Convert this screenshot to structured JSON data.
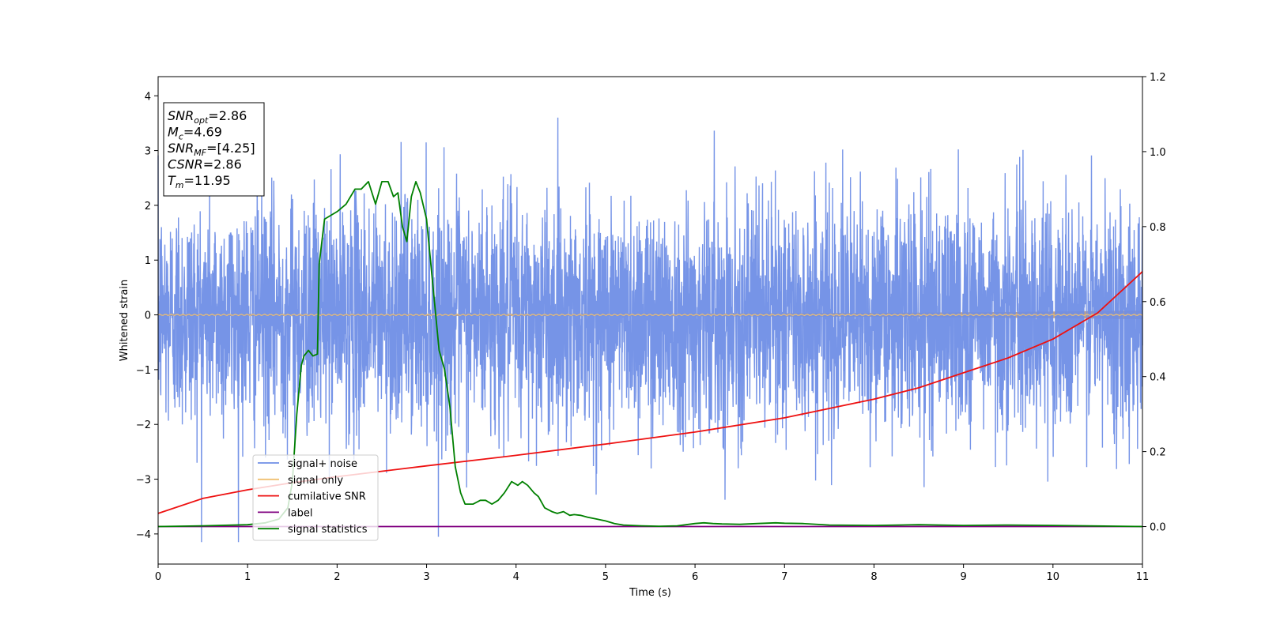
{
  "chart_data": {
    "type": "line",
    "xlabel": "Time (s)",
    "ylabel": "Whitened strain",
    "xlim": [
      0,
      11
    ],
    "ylim": [
      -4.55,
      4.35
    ],
    "y2lim": [
      -0.1,
      1.2
    ],
    "xticks": [
      "0",
      "1",
      "2",
      "3",
      "4",
      "5",
      "6",
      "7",
      "8",
      "9",
      "10",
      "11"
    ],
    "yticks": [
      "−4",
      "−3",
      "−2",
      "−1",
      "0",
      "1",
      "2",
      "3",
      "4"
    ],
    "y2ticks": [
      "0.0",
      "0.2",
      "0.4",
      "0.6",
      "0.8",
      "1.0",
      "1.2"
    ],
    "grid": false,
    "legend_position": "lower-left",
    "colors": {
      "signal_noise": "#6f8ee6",
      "signal_only": "#f0c070",
      "cumulative_snr": "#ee1111",
      "label": "#800080",
      "signal_statistics": "#008000",
      "signal_only_band": "#c49a70"
    },
    "info_box": [
      {
        "base": "SNR",
        "sub": "opt",
        "rest": "=2.86"
      },
      {
        "base": "M",
        "sub": "c",
        "rest": "=4.69"
      },
      {
        "base": "SNR",
        "sub": "MF",
        "rest": "=[4.25]"
      },
      {
        "base": "CSNR",
        "sub": "",
        "rest": "=2.86"
      },
      {
        "base": "T",
        "sub": "m",
        "rest": "=11.95"
      }
    ],
    "series": [
      {
        "name": "signal+ noise",
        "axis": "left",
        "color": "#6f8ee6",
        "kind": "noise",
        "sigma": 1.0,
        "x_range": [
          0,
          11
        ]
      },
      {
        "name": "signal only",
        "axis": "left",
        "color": "#f0c070",
        "x_range": [
          0,
          11
        ],
        "amplitude_start": 0.02,
        "amplitude_end": 0.08
      },
      {
        "name": "cumilative SNR",
        "axis": "right",
        "x": [
          0,
          0.5,
          1,
          1.5,
          2,
          3,
          4,
          5,
          6,
          7,
          8,
          8.5,
          9,
          9.5,
          10,
          10.5,
          11
        ],
        "y": [
          0.035,
          0.075,
          0.098,
          0.117,
          0.133,
          0.162,
          0.19,
          0.22,
          0.252,
          0.29,
          0.34,
          0.37,
          0.41,
          0.45,
          0.5,
          0.57,
          0.68
        ]
      },
      {
        "name": "label",
        "axis": "right",
        "x": [
          0,
          11
        ],
        "y": [
          0.0,
          0.0
        ]
      },
      {
        "name": "signal statistics",
        "axis": "right",
        "x": [
          0,
          0.5,
          1.0,
          1.2,
          1.35,
          1.45,
          1.5,
          1.55,
          1.6,
          1.63,
          1.68,
          1.73,
          1.78,
          1.8,
          1.86,
          1.93,
          2.0,
          2.1,
          2.2,
          2.27,
          2.35,
          2.43,
          2.5,
          2.57,
          2.63,
          2.68,
          2.73,
          2.78,
          2.83,
          2.88,
          2.93,
          3.0,
          3.06,
          3.14,
          3.2,
          3.26,
          3.32,
          3.38,
          3.43,
          3.52,
          3.6,
          3.66,
          3.73,
          3.8,
          3.87,
          3.95,
          4.02,
          4.07,
          4.13,
          4.2,
          4.25,
          4.32,
          4.4,
          4.46,
          4.53,
          4.6,
          4.65,
          4.72,
          4.8,
          4.9,
          5.0,
          5.1,
          5.2,
          5.4,
          5.6,
          5.8,
          6.0,
          6.1,
          6.2,
          6.3,
          6.5,
          6.7,
          6.9,
          7.0,
          7.2,
          7.5,
          8.0,
          8.5,
          9.0,
          9.5,
          10.0,
          11.0
        ],
        "y": [
          0.0,
          0.002,
          0.005,
          0.01,
          0.02,
          0.05,
          0.12,
          0.3,
          0.43,
          0.455,
          0.47,
          0.455,
          0.46,
          0.7,
          0.82,
          0.83,
          0.84,
          0.86,
          0.9,
          0.9,
          0.92,
          0.86,
          0.92,
          0.92,
          0.88,
          0.89,
          0.8,
          0.76,
          0.88,
          0.92,
          0.89,
          0.82,
          0.67,
          0.47,
          0.42,
          0.32,
          0.16,
          0.09,
          0.06,
          0.06,
          0.07,
          0.07,
          0.06,
          0.07,
          0.09,
          0.12,
          0.11,
          0.12,
          0.11,
          0.09,
          0.08,
          0.05,
          0.04,
          0.035,
          0.04,
          0.03,
          0.032,
          0.03,
          0.025,
          0.02,
          0.015,
          0.008,
          0.004,
          0.002,
          0.001,
          0.002,
          0.008,
          0.01,
          0.008,
          0.007,
          0.006,
          0.008,
          0.01,
          0.009,
          0.008,
          0.004,
          0.003,
          0.005,
          0.003,
          0.004,
          0.003,
          0.0
        ]
      }
    ]
  }
}
